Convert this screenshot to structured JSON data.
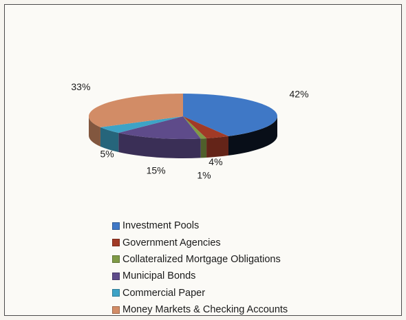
{
  "chart_data": {
    "type": "pie",
    "title": "",
    "categories": [
      "Investment Pools",
      "Government  Agencies",
      "Collateralized Mortgage Obligations",
      "Municipal Bonds",
      "Commercial Paper",
      "Money Markets & Checking Accounts"
    ],
    "values": [
      42,
      4,
      1,
      15,
      5,
      33
    ],
    "labels": [
      "42%",
      "4%",
      "1%",
      "15%",
      "5%",
      "33%"
    ],
    "colors": [
      "#3f78c6",
      "#a13a26",
      "#7f9a46",
      "#5e4b8a",
      "#3ea3c6",
      "#d28c66"
    ],
    "legend_position": "bottom"
  }
}
